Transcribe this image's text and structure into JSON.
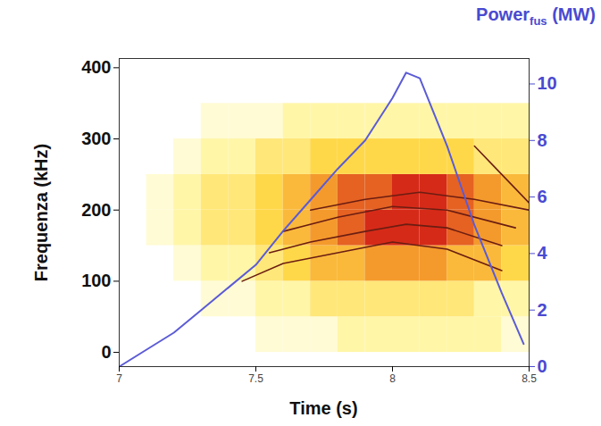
{
  "chart_data": {
    "type": "spectrogram",
    "ylabel": "Frequenza (kHz)",
    "xlabel": "Time (s)",
    "y2label": {
      "text": "Power",
      "subscript": "fus",
      "unit": "(MW)"
    },
    "xlim": [
      7,
      8.5
    ],
    "xticks": [
      7,
      7.5,
      8,
      8.5
    ],
    "ylim": [
      -20,
      413
    ],
    "yticks": [
      0,
      100,
      200,
      300,
      400
    ],
    "y2lim": [
      0,
      10.9
    ],
    "y2ticks": [
      0,
      2,
      4,
      6,
      8,
      10
    ],
    "grid": false,
    "heatmap": {
      "t_bins": [
        7,
        7.1,
        7.2,
        7.3,
        7.4,
        7.5,
        7.6,
        7.7,
        7.8,
        7.9,
        8,
        8.1,
        8.2,
        8.3,
        8.4,
        8.5
      ],
      "f_bins": [
        0,
        50,
        100,
        150,
        200,
        250,
        300,
        350,
        400
      ],
      "intensity": [
        [
          0,
          0,
          0,
          0,
          0,
          1,
          1,
          1,
          2,
          2,
          2,
          2,
          2,
          2,
          1
        ],
        [
          0,
          0,
          0,
          1,
          1,
          2,
          2,
          3,
          3,
          3,
          3,
          3,
          3,
          2,
          2
        ],
        [
          0,
          0,
          1,
          2,
          2,
          3,
          4,
          5,
          5,
          6,
          6,
          6,
          5,
          5,
          4
        ],
        [
          0,
          1,
          2,
          3,
          3,
          4,
          5,
          6,
          7,
          8,
          8,
          8,
          7,
          6,
          5
        ],
        [
          0,
          1,
          2,
          3,
          3,
          4,
          5,
          6,
          7,
          7,
          8,
          8,
          7,
          6,
          5
        ],
        [
          0,
          0,
          1,
          2,
          2,
          3,
          3,
          4,
          4,
          4,
          4,
          4,
          4,
          3,
          3
        ],
        [
          0,
          0,
          0,
          1,
          1,
          1,
          2,
          2,
          2,
          2,
          2,
          2,
          2,
          2,
          2
        ],
        [
          0,
          0,
          0,
          0,
          0,
          0,
          0,
          0,
          0,
          0,
          0,
          0,
          0,
          0,
          0
        ]
      ],
      "clim": [
        0,
        8
      ],
      "colors": [
        "#ffffff",
        "#fff6a8",
        "#ffd84a",
        "#f49a2c",
        "#d62a18"
      ]
    },
    "series": [
      {
        "type": "line",
        "color": "#6b1d12",
        "x": [
          7.45,
          7.6,
          7.8,
          8.0,
          8.2,
          8.4
        ],
        "values": [
          100,
          125,
          140,
          155,
          145,
          115
        ]
      },
      {
        "type": "line",
        "color": "#6b1d12",
        "x": [
          7.55,
          7.7,
          7.9,
          8.05,
          8.2,
          8.4
        ],
        "values": [
          140,
          155,
          170,
          180,
          175,
          150
        ]
      },
      {
        "type": "line",
        "color": "#6b1d12",
        "x": [
          7.6,
          7.8,
          8.0,
          8.2,
          8.45
        ],
        "values": [
          170,
          190,
          205,
          200,
          175
        ]
      },
      {
        "type": "line",
        "color": "#6b1d12",
        "x": [
          7.7,
          7.9,
          8.1,
          8.3,
          8.5
        ],
        "values": [
          200,
          215,
          225,
          215,
          200
        ]
      },
      {
        "type": "line",
        "color": "#6b1d12",
        "x": [
          8.3,
          8.4,
          8.5
        ],
        "values": [
          290,
          250,
          210
        ]
      },
      {
        "type": "line",
        "axis": "y2",
        "color": "#5b5bd6",
        "x": [
          7.0,
          7.1,
          7.2,
          7.3,
          7.4,
          7.5,
          7.6,
          7.7,
          7.8,
          7.9,
          8.0,
          8.05,
          8.1,
          8.2,
          8.3,
          8.4,
          8.48
        ],
        "values": [
          0,
          0.6,
          1.2,
          2.0,
          2.8,
          3.6,
          4.8,
          5.9,
          7.0,
          8.0,
          9.5,
          10.4,
          10.2,
          7.8,
          5.0,
          2.6,
          0.8
        ]
      }
    ]
  }
}
